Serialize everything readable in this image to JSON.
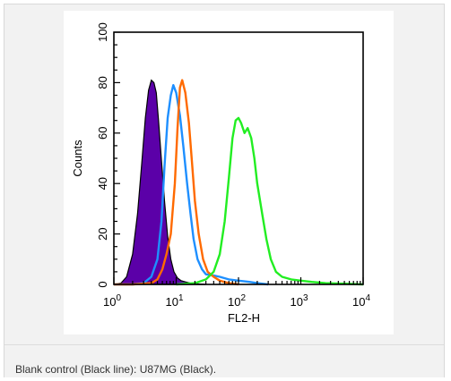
{
  "caption": "Blank control (Black line): U87MG (Black).",
  "chart_data": {
    "type": "area",
    "title": "",
    "xlabel": "FL2-H",
    "ylabel": "Counts",
    "xscale": "log",
    "xlim": [
      1,
      10000
    ],
    "ylim": [
      0,
      100
    ],
    "grid": false,
    "legend": "none",
    "x_tick_labels": [
      {
        "base": "10",
        "exp": "0"
      },
      {
        "base": "10",
        "exp": "1"
      },
      {
        "base": "10",
        "exp": "2"
      },
      {
        "base": "10",
        "exp": "3"
      },
      {
        "base": "10",
        "exp": "4"
      }
    ],
    "y_tick_labels": [
      "0",
      "20",
      "40",
      "60",
      "80",
      "100"
    ],
    "series": [
      {
        "color": "#5b00a8",
        "fill": true,
        "x": [
          1,
          1.3,
          1.6,
          2,
          2.4,
          2.8,
          3.2,
          3.6,
          4,
          4.4,
          4.8,
          5.2,
          5.8,
          6.5,
          7.3,
          8.2,
          9.2,
          10.5,
          12,
          14,
          17,
          20,
          30
        ],
        "y": [
          0,
          0.5,
          3,
          12,
          28,
          48,
          66,
          77,
          81,
          80,
          76,
          65,
          49,
          33,
          19,
          10,
          5,
          2.5,
          1.5,
          1,
          0.5,
          0.3,
          0
        ]
      },
      {
        "color": "#1e8fff",
        "fill": false,
        "x": [
          1,
          2,
          3,
          4,
          5,
          5.8,
          6.5,
          7.3,
          8.2,
          9,
          10,
          11.5,
          13,
          15,
          17,
          19,
          22,
          26,
          30,
          40,
          50,
          70,
          100,
          150,
          200,
          300
        ],
        "y": [
          0,
          0,
          0.5,
          3,
          10,
          25,
          47,
          66,
          75,
          79,
          76,
          67,
          55,
          40,
          28,
          18,
          10,
          6,
          4,
          3.5,
          3,
          2,
          1.5,
          1,
          0.5,
          0
        ]
      },
      {
        "color": "#ff6a00",
        "fill": false,
        "x": [
          1,
          2,
          4,
          5,
          6,
          7,
          8.2,
          9.5,
          10.5,
          11.5,
          12.5,
          14,
          16,
          18,
          20,
          23,
          27,
          32,
          40,
          50,
          70,
          100
        ],
        "y": [
          0,
          0,
          0.5,
          2,
          6,
          12,
          20,
          40,
          62,
          78,
          81,
          76,
          64,
          48,
          33,
          20,
          10,
          5,
          3,
          1.5,
          0.5,
          0
        ]
      },
      {
        "color": "#22ee22",
        "fill": false,
        "x": [
          10,
          20,
          30,
          40,
          50,
          60,
          70,
          80,
          90,
          100,
          110,
          125,
          140,
          160,
          180,
          200,
          240,
          280,
          330,
          400,
          500,
          700,
          1000,
          1500,
          2500,
          5000,
          10000
        ],
        "y": [
          0,
          0.5,
          2,
          5,
          12,
          25,
          42,
          58,
          65,
          66,
          64,
          60,
          62,
          58,
          50,
          40,
          28,
          18,
          10,
          5,
          3,
          2,
          1.5,
          1,
          0.5,
          0.3,
          0
        ]
      }
    ]
  }
}
